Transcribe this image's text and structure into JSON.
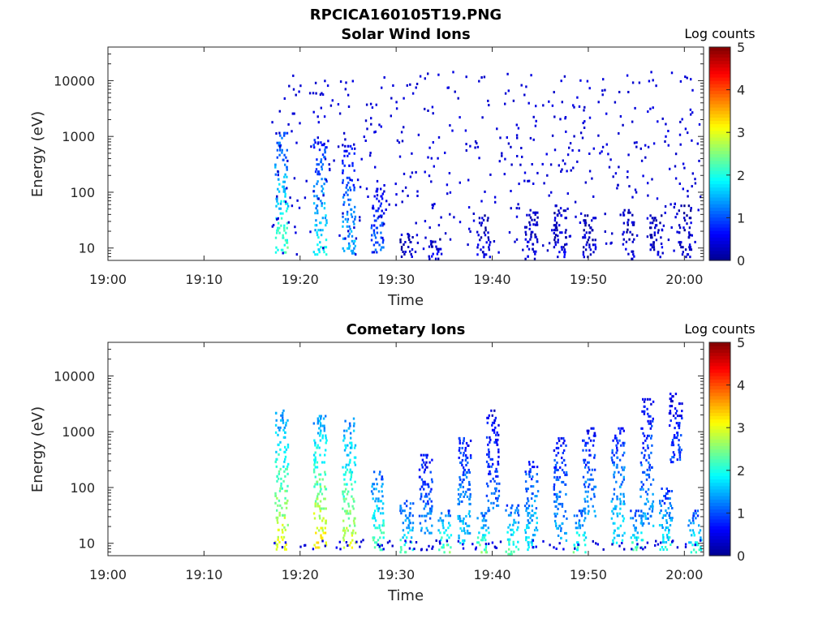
{
  "figure_title": "RPCICA160105T19.PNG",
  "colors": {
    "axis": "#262626",
    "colormap": [
      "#00008f",
      "#0000ff",
      "#0080ff",
      "#00ffff",
      "#80ff80",
      "#ffff00",
      "#ff8000",
      "#ff0000",
      "#800000"
    ]
  },
  "chart_data": [
    {
      "type": "heatmap",
      "title": "Solar Wind Ions",
      "xlabel": "Time",
      "ylabel": "Energy (eV)",
      "x_scale": "time",
      "y_scale": "log",
      "xlim": [
        "19:00",
        "20:02"
      ],
      "ylim": [
        6,
        40000
      ],
      "xticks": [
        "19:00",
        "19:10",
        "19:20",
        "19:30",
        "19:40",
        "19:50",
        "20:00"
      ],
      "yticks": [
        "10",
        "100",
        "1000",
        "10000"
      ],
      "colorbar": {
        "label": "Log counts",
        "range": [
          0,
          5
        ],
        "ticks": [
          "0",
          "1",
          "2",
          "3",
          "4",
          "5"
        ]
      },
      "data_start": "19:17",
      "dense_bursts": [
        "19:18",
        "19:22",
        "19:25",
        "19:28"
      ],
      "columns": [
        {
          "t": "19:18",
          "emin": 8,
          "emax": 1200,
          "level": 1.6
        },
        {
          "t": "19:22",
          "emin": 8,
          "emax": 1000,
          "level": 1.3
        },
        {
          "t": "19:25",
          "emin": 8,
          "emax": 700,
          "level": 1.1
        },
        {
          "t": "19:28",
          "emin": 8,
          "emax": 120,
          "level": 0.8
        },
        {
          "t": "19:31",
          "emin": 6,
          "emax": 20,
          "level": 0.3
        },
        {
          "t": "19:34",
          "emin": 6,
          "emax": 15,
          "level": 0.3
        },
        {
          "t": "19:39",
          "emin": 6,
          "emax": 40,
          "level": 0.3
        },
        {
          "t": "19:44",
          "emin": 6,
          "emax": 50,
          "level": 0.3
        },
        {
          "t": "19:47",
          "emin": 6,
          "emax": 60,
          "level": 0.3
        },
        {
          "t": "19:50",
          "emin": 6,
          "emax": 40,
          "level": 0.3
        },
        {
          "t": "19:54",
          "emin": 6,
          "emax": 50,
          "level": 0.3
        },
        {
          "t": "19:57",
          "emin": 6,
          "emax": 40,
          "level": 0.3
        },
        {
          "t": "20:00",
          "emin": 6,
          "emax": 60,
          "level": 0.3
        }
      ],
      "background": {
        "emin": 8,
        "emax": 15000,
        "level": 0.3
      }
    },
    {
      "type": "heatmap",
      "title": "Cometary Ions",
      "xlabel": "Time",
      "ylabel": "Energy (eV)",
      "x_scale": "time",
      "y_scale": "log",
      "xlim": [
        "19:00",
        "20:02"
      ],
      "ylim": [
        6,
        40000
      ],
      "xticks": [
        "19:00",
        "19:10",
        "19:20",
        "19:30",
        "19:40",
        "19:50",
        "20:00"
      ],
      "yticks": [
        "10",
        "100",
        "1000",
        "10000"
      ],
      "colorbar": {
        "label": "Log counts",
        "range": [
          0,
          5
        ],
        "ticks": [
          "0",
          "1",
          "2",
          "3",
          "4",
          "5"
        ]
      },
      "data_start": "19:17",
      "columns": [
        {
          "t": "19:18",
          "emin": 8,
          "emax": 2500,
          "level": 2.2
        },
        {
          "t": "19:22",
          "emin": 8,
          "emax": 2000,
          "level": 2.3
        },
        {
          "t": "19:25",
          "emin": 8,
          "emax": 1800,
          "level": 2.1
        },
        {
          "t": "19:28",
          "emin": 8,
          "emax": 200,
          "level": 1.7
        },
        {
          "t": "19:31",
          "emin": 6,
          "emax": 60,
          "level": 1.6
        },
        {
          "t": "19:33",
          "emin": 15,
          "emax": 400,
          "level": 1.0
        },
        {
          "t": "19:35",
          "emin": 6,
          "emax": 40,
          "level": 1.8
        },
        {
          "t": "19:37",
          "emin": 10,
          "emax": 800,
          "level": 1.2
        },
        {
          "t": "19:39",
          "emin": 6,
          "emax": 40,
          "level": 1.8
        },
        {
          "t": "19:40",
          "emin": 40,
          "emax": 2500,
          "level": 0.8
        },
        {
          "t": "19:42",
          "emin": 6,
          "emax": 50,
          "level": 1.7
        },
        {
          "t": "19:44",
          "emin": 8,
          "emax": 300,
          "level": 1.3
        },
        {
          "t": "19:47",
          "emin": 10,
          "emax": 800,
          "level": 1.1
        },
        {
          "t": "19:49",
          "emin": 6,
          "emax": 40,
          "level": 1.7
        },
        {
          "t": "19:50",
          "emin": 30,
          "emax": 1200,
          "level": 1.0
        },
        {
          "t": "19:53",
          "emin": 10,
          "emax": 1200,
          "level": 1.3
        },
        {
          "t": "19:55",
          "emin": 6,
          "emax": 40,
          "level": 1.7
        },
        {
          "t": "19:56",
          "emin": 20,
          "emax": 4000,
          "level": 1.0
        },
        {
          "t": "19:58",
          "emin": 8,
          "emax": 100,
          "level": 1.4
        },
        {
          "t": "19:59",
          "emin": 300,
          "emax": 5000,
          "level": 0.7
        },
        {
          "t": "20:01",
          "emin": 6,
          "emax": 40,
          "level": 1.6
        }
      ]
    }
  ]
}
